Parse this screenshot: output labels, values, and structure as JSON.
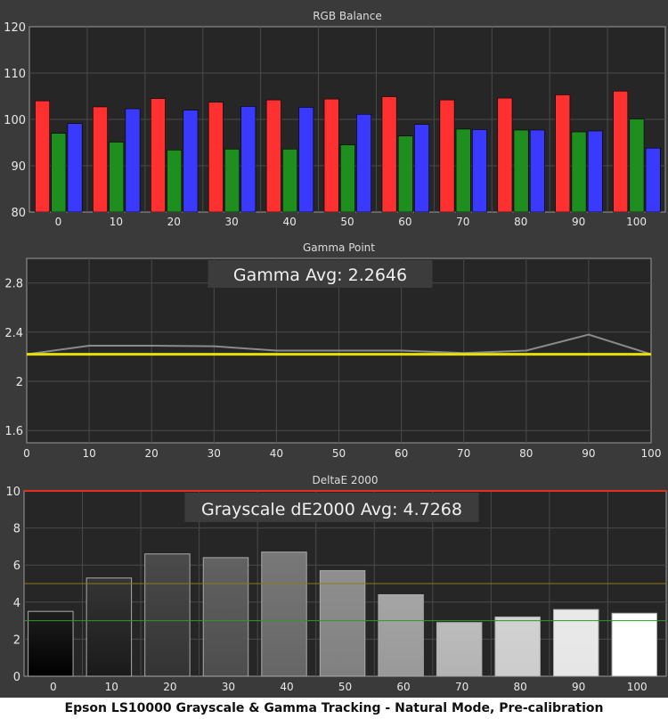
{
  "caption": "Epson LS10000 Grayscale & Gamma Tracking - Natural Mode, Pre-calibration",
  "colors": {
    "background": "#3a3a3a",
    "plot_bg": "#262626",
    "red": "#ff3030",
    "green": "#1e8f1e",
    "blue": "#3a3aff",
    "gamma_measured": "#8a8a8a",
    "gamma_target": "#e8e000",
    "de_limit": "#e03020",
    "de_yellow_line": "#8a7a20",
    "de_green_line": "#2a9a2a"
  },
  "chart_data": [
    {
      "type": "bar",
      "title": "RGB Balance",
      "categories": [
        "0",
        "10",
        "20",
        "30",
        "40",
        "50",
        "60",
        "70",
        "80",
        "90",
        "100"
      ],
      "series": [
        {
          "key": "red",
          "values": [
            104,
            102.7,
            104.5,
            103.7,
            104.2,
            104.4,
            104.9,
            104.2,
            104.6,
            105.3,
            106.1
          ]
        },
        {
          "key": "green",
          "values": [
            97,
            95.1,
            93.4,
            93.6,
            93.6,
            94.5,
            96.4,
            97.9,
            97.7,
            97.3,
            100.1
          ]
        },
        {
          "key": "blue",
          "values": [
            99.1,
            102.3,
            102,
            102.8,
            102.6,
            101.1,
            98.9,
            97.8,
            97.7,
            97.5,
            93.8
          ]
        }
      ],
      "ylim": [
        80,
        120
      ],
      "yticks": [
        "80",
        "90",
        "100",
        "110",
        "120"
      ],
      "grid": true
    },
    {
      "type": "line",
      "title": "Gamma Point",
      "annotation": "Gamma Avg: 2.2646",
      "x": [
        0,
        10,
        20,
        30,
        40,
        50,
        60,
        70,
        80,
        90,
        100
      ],
      "series": [
        {
          "key": "measured",
          "values": [
            2.22,
            2.29,
            2.29,
            2.285,
            2.25,
            2.25,
            2.25,
            2.23,
            2.25,
            2.38,
            2.22
          ]
        },
        {
          "key": "target",
          "values": [
            2.22,
            2.22,
            2.22,
            2.22,
            2.22,
            2.22,
            2.22,
            2.22,
            2.22,
            2.22,
            2.22
          ]
        }
      ],
      "ylim": [
        1.5,
        3.0
      ],
      "yticks": [
        "1.6",
        "2",
        "2.4",
        "2.8"
      ],
      "xticks": [
        "0",
        "10",
        "20",
        "30",
        "40",
        "50",
        "60",
        "70",
        "80",
        "90",
        "100"
      ],
      "grid": true
    },
    {
      "type": "bar",
      "title": "DeltaE 2000",
      "annotation": "Grayscale dE2000 Avg: 4.7268",
      "categories": [
        "0",
        "10",
        "20",
        "30",
        "40",
        "50",
        "60",
        "70",
        "80",
        "90",
        "100"
      ],
      "values": [
        3.5,
        5.3,
        6.6,
        6.4,
        6.7,
        5.7,
        4.4,
        2.9,
        3.2,
        3.6,
        3.4
      ],
      "ylim": [
        0,
        10
      ],
      "yticks": [
        "0",
        "2",
        "4",
        "6",
        "8",
        "10"
      ],
      "reference_lines": [
        10,
        5,
        3
      ],
      "grid": true
    }
  ]
}
